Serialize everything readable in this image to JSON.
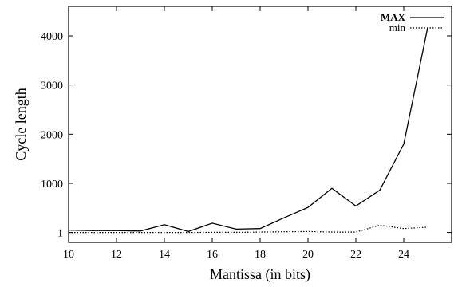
{
  "chart_data": {
    "type": "line",
    "xlabel": "Mantissa (in bits)",
    "ylabel": "Cycle length",
    "xlim": [
      10,
      26
    ],
    "ylim": [
      -200,
      4600
    ],
    "x_ticks": [
      10,
      12,
      14,
      16,
      18,
      20,
      22,
      24
    ],
    "y_ticks": [
      1,
      1000,
      2000,
      3000,
      4000
    ],
    "x_tick_labels": [
      "10",
      "12",
      "14",
      "16",
      "18",
      "20",
      "22",
      "24"
    ],
    "y_tick_labels": [
      "1",
      "1000",
      "2000",
      "3000",
      "4000"
    ],
    "legend_position": "top-right",
    "grid": false,
    "series": [
      {
        "name": "MAX",
        "style": "solid",
        "x": [
          10,
          11,
          12,
          13,
          14,
          15,
          16,
          17,
          18,
          19,
          20,
          21,
          22,
          23,
          24,
          25
        ],
        "values": [
          50,
          40,
          40,
          30,
          160,
          20,
          190,
          70,
          80,
          300,
          510,
          900,
          540,
          860,
          1800,
          4170
        ]
      },
      {
        "name": "min",
        "style": "dotted",
        "x": [
          10,
          11,
          12,
          13,
          14,
          15,
          16,
          17,
          18,
          19,
          20,
          21,
          22,
          23,
          24,
          25
        ],
        "values": [
          1,
          1,
          1,
          1,
          1,
          1,
          5,
          5,
          10,
          15,
          20,
          10,
          10,
          150,
          80,
          110
        ]
      }
    ]
  }
}
